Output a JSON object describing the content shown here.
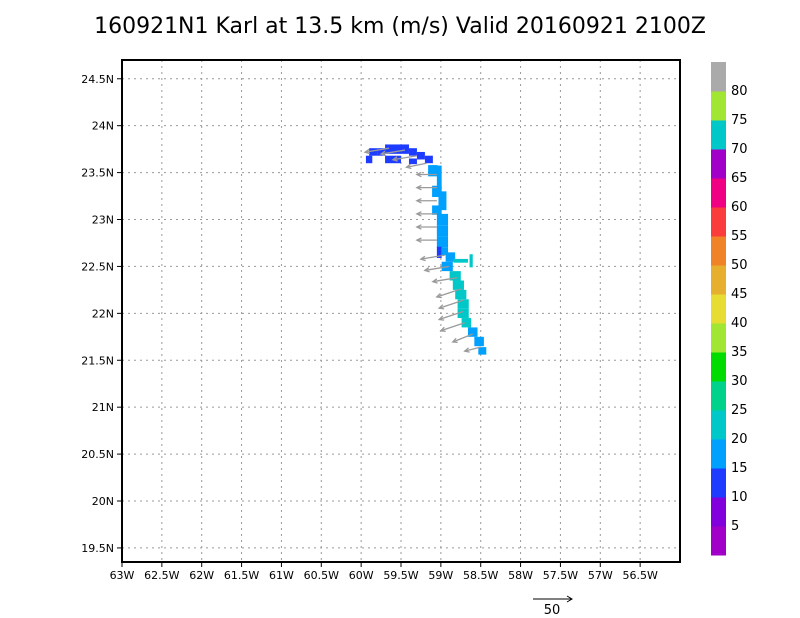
{
  "chart_data": {
    "type": "heatmap",
    "title": "160921N1 Karl at 13.5 km (m/s) Valid 20160921  2100Z",
    "xlabel": "",
    "ylabel": "",
    "xlim": [
      -63.0,
      -56.0
    ],
    "ylim": [
      19.35,
      24.7
    ],
    "grid": true,
    "x_ticks": [
      {
        "value": -63.0,
        "label": "63W"
      },
      {
        "value": -62.5,
        "label": "62.5W"
      },
      {
        "value": -62.0,
        "label": "62W"
      },
      {
        "value": -61.5,
        "label": "61.5W"
      },
      {
        "value": -61.0,
        "label": "61W"
      },
      {
        "value": -60.5,
        "label": "60.5W"
      },
      {
        "value": -60.0,
        "label": "60W"
      },
      {
        "value": -59.5,
        "label": "59.5W"
      },
      {
        "value": -59.0,
        "label": "59W"
      },
      {
        "value": -58.5,
        "label": "58.5W"
      },
      {
        "value": -58.0,
        "label": "58W"
      },
      {
        "value": -57.5,
        "label": "57.5W"
      },
      {
        "value": -57.0,
        "label": "57W"
      },
      {
        "value": -56.5,
        "label": "56.5W"
      }
    ],
    "y_ticks": [
      {
        "value": 19.5,
        "label": "19.5N"
      },
      {
        "value": 20.0,
        "label": "20N"
      },
      {
        "value": 20.5,
        "label": "20.5N"
      },
      {
        "value": 21.0,
        "label": "21N"
      },
      {
        "value": 21.5,
        "label": "21.5N"
      },
      {
        "value": 22.0,
        "label": "22N"
      },
      {
        "value": 22.5,
        "label": "22.5N"
      },
      {
        "value": 23.0,
        "label": "23N"
      },
      {
        "value": 23.5,
        "label": "23.5N"
      },
      {
        "value": 24.0,
        "label": "24N"
      },
      {
        "value": 24.5,
        "label": "24.5N"
      }
    ],
    "colorbar": {
      "labels": [
        "5",
        "10",
        "15",
        "20",
        "25",
        "30",
        "35",
        "40",
        "45",
        "50",
        "55",
        "60",
        "65",
        "70",
        "75",
        "80"
      ],
      "colors": [
        "#a000c8",
        "#8200dc",
        "#1e3cff",
        "#00a0ff",
        "#00c8c8",
        "#00d28c",
        "#00dc00",
        "#a0e632",
        "#e6dc32",
        "#e6af2d",
        "#f08228",
        "#fa3c3c",
        "#f00082",
        "#a000c8",
        "#00c8c8",
        "#a0e632",
        "#aaaaaa"
      ]
    },
    "cells": [
      {
        "lon": -59.85,
        "lat": 23.72,
        "w": 0.1,
        "h": 0.08,
        "value": 12
      },
      {
        "lon": -59.75,
        "lat": 23.72,
        "w": 0.1,
        "h": 0.08,
        "value": 12
      },
      {
        "lon": -59.6,
        "lat": 23.75,
        "w": 0.2,
        "h": 0.1,
        "value": 12
      },
      {
        "lon": -59.45,
        "lat": 23.75,
        "w": 0.1,
        "h": 0.1,
        "value": 12
      },
      {
        "lon": -59.35,
        "lat": 23.72,
        "w": 0.1,
        "h": 0.08,
        "value": 12
      },
      {
        "lon": -59.25,
        "lat": 23.68,
        "w": 0.1,
        "h": 0.08,
        "value": 12
      },
      {
        "lon": -59.15,
        "lat": 23.64,
        "w": 0.1,
        "h": 0.08,
        "value": 12
      },
      {
        "lon": -59.9,
        "lat": 23.64,
        "w": 0.08,
        "h": 0.08,
        "value": 12
      },
      {
        "lon": -59.6,
        "lat": 23.64,
        "w": 0.2,
        "h": 0.08,
        "value": 12
      },
      {
        "lon": -59.35,
        "lat": 23.62,
        "w": 0.1,
        "h": 0.06,
        "value": 12
      },
      {
        "lon": -59.1,
        "lat": 23.52,
        "w": 0.12,
        "h": 0.12,
        "value": 18
      },
      {
        "lon": -59.02,
        "lat": 23.45,
        "w": 0.06,
        "h": 0.25,
        "value": 18
      },
      {
        "lon": -59.05,
        "lat": 23.3,
        "w": 0.12,
        "h": 0.12,
        "value": 18
      },
      {
        "lon": -58.98,
        "lat": 23.2,
        "w": 0.1,
        "h": 0.2,
        "value": 18
      },
      {
        "lon": -59.05,
        "lat": 23.1,
        "w": 0.12,
        "h": 0.1,
        "value": 18
      },
      {
        "lon": -58.98,
        "lat": 23.0,
        "w": 0.14,
        "h": 0.12,
        "value": 18
      },
      {
        "lon": -58.98,
        "lat": 22.88,
        "w": 0.14,
        "h": 0.12,
        "value": 18
      },
      {
        "lon": -58.98,
        "lat": 22.76,
        "w": 0.14,
        "h": 0.12,
        "value": 18
      },
      {
        "lon": -59.02,
        "lat": 22.65,
        "w": 0.06,
        "h": 0.12,
        "value": 12
      },
      {
        "lon": -58.95,
        "lat": 22.66,
        "w": 0.08,
        "h": 0.08,
        "value": 18
      },
      {
        "lon": -58.88,
        "lat": 22.6,
        "w": 0.12,
        "h": 0.1,
        "value": 18
      },
      {
        "lon": -58.92,
        "lat": 22.5,
        "w": 0.14,
        "h": 0.1,
        "value": 18
      },
      {
        "lon": -58.75,
        "lat": 22.56,
        "w": 0.18,
        "h": 0.04,
        "value": 22
      },
      {
        "lon": -58.62,
        "lat": 22.56,
        "w": 0.04,
        "h": 0.14,
        "value": 22
      },
      {
        "lon": -58.82,
        "lat": 22.4,
        "w": 0.14,
        "h": 0.1,
        "value": 22
      },
      {
        "lon": -58.78,
        "lat": 22.3,
        "w": 0.14,
        "h": 0.1,
        "value": 22
      },
      {
        "lon": -58.75,
        "lat": 22.2,
        "w": 0.14,
        "h": 0.1,
        "value": 22
      },
      {
        "lon": -58.72,
        "lat": 22.1,
        "w": 0.14,
        "h": 0.1,
        "value": 22
      },
      {
        "lon": -58.72,
        "lat": 22.0,
        "w": 0.14,
        "h": 0.1,
        "value": 22
      },
      {
        "lon": -58.68,
        "lat": 21.9,
        "w": 0.12,
        "h": 0.1,
        "value": 22
      },
      {
        "lon": -58.6,
        "lat": 21.8,
        "w": 0.12,
        "h": 0.1,
        "value": 18
      },
      {
        "lon": -58.52,
        "lat": 21.7,
        "w": 0.12,
        "h": 0.1,
        "value": 18
      },
      {
        "lon": -58.48,
        "lat": 21.6,
        "w": 0.1,
        "h": 0.08,
        "value": 18
      }
    ],
    "vectors": [
      {
        "lon": -59.65,
        "lat": 23.76,
        "u": -6,
        "v": -1
      },
      {
        "lon": -59.45,
        "lat": 23.74,
        "u": -6,
        "v": -1
      },
      {
        "lon": -59.3,
        "lat": 23.68,
        "u": -6,
        "v": -1
      },
      {
        "lon": -59.18,
        "lat": 23.6,
        "u": -5,
        "v": -1
      },
      {
        "lon": -59.05,
        "lat": 23.48,
        "u": -5,
        "v": 0
      },
      {
        "lon": -59.05,
        "lat": 23.34,
        "u": -5,
        "v": 0
      },
      {
        "lon": -59.05,
        "lat": 23.2,
        "u": -5,
        "v": 0
      },
      {
        "lon": -59.05,
        "lat": 23.06,
        "u": -5,
        "v": 0
      },
      {
        "lon": -59.05,
        "lat": 22.92,
        "u": -5,
        "v": 0
      },
      {
        "lon": -59.05,
        "lat": 22.78,
        "u": -5,
        "v": 0
      },
      {
        "lon": -58.95,
        "lat": 22.62,
        "u": -6,
        "v": -1
      },
      {
        "lon": -58.9,
        "lat": 22.5,
        "u": -6,
        "v": -1
      },
      {
        "lon": -58.8,
        "lat": 22.38,
        "u": -6,
        "v": -1
      },
      {
        "lon": -58.75,
        "lat": 22.26,
        "u": -6,
        "v": -2
      },
      {
        "lon": -58.72,
        "lat": 22.14,
        "u": -6,
        "v": -2
      },
      {
        "lon": -58.72,
        "lat": 22.02,
        "u": -6,
        "v": -2
      },
      {
        "lon": -58.7,
        "lat": 21.9,
        "u": -6,
        "v": -2
      },
      {
        "lon": -58.6,
        "lat": 21.78,
        "u": -5,
        "v": -2
      },
      {
        "lon": -58.5,
        "lat": 21.64,
        "u": -4,
        "v": -1
      }
    ],
    "reference_vector": {
      "label": "50"
    }
  }
}
